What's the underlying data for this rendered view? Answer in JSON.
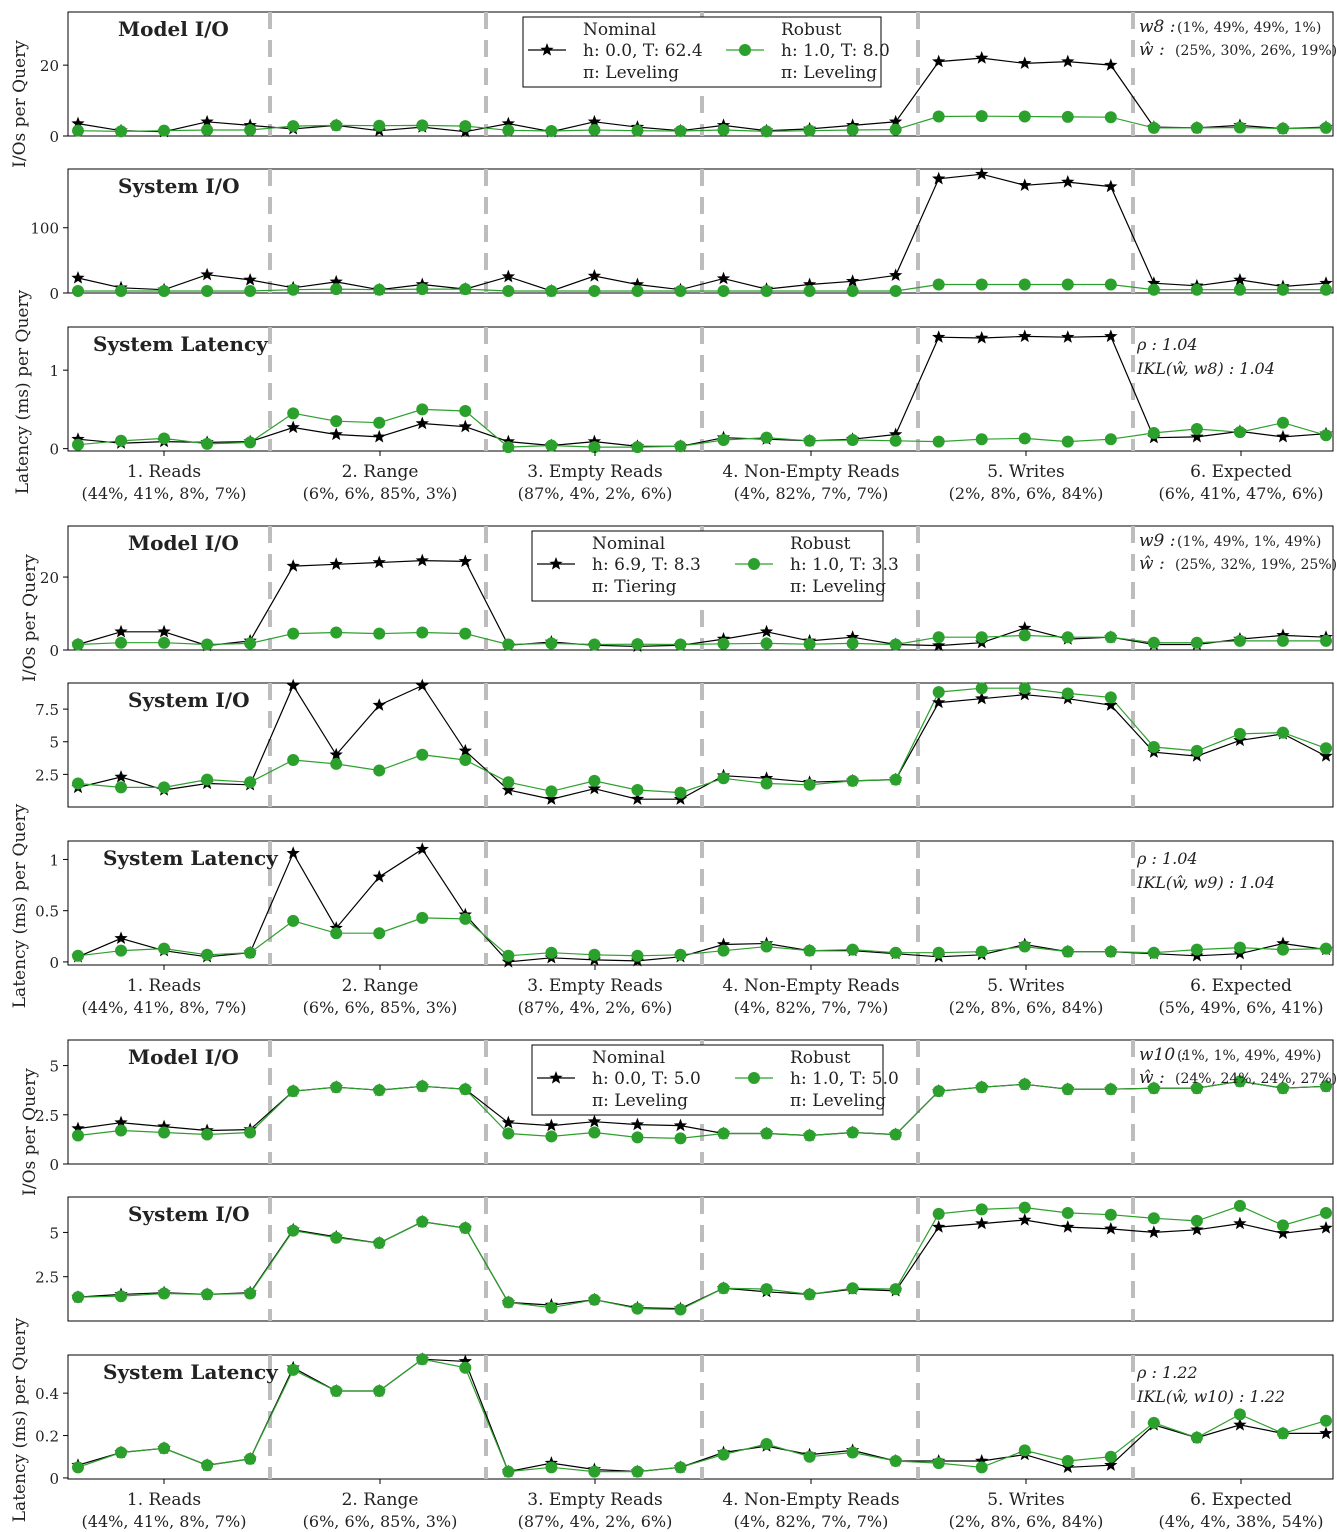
{
  "chart_data": [
    {
      "type": "line",
      "workload_categories": [
        {
          "name": "1. Reads",
          "mix": "(44%, 41%, 8%, 7%)"
        },
        {
          "name": "2. Range",
          "mix": "(6%, 6%, 85%, 3%)"
        },
        {
          "name": "3. Empty Reads",
          "mix": "(87%, 4%, 2%, 6%)"
        },
        {
          "name": "4. Non-Empty Reads",
          "mix": "(4%, 82%, 7%, 7%)"
        },
        {
          "name": "5. Writes",
          "mix": "(2%, 8%, 6%, 84%)"
        },
        {
          "name": "6. Expected",
          "mix": "(6%, 41%, 47%, 6%)"
        }
      ],
      "legend": {
        "nominal": {
          "title": "Nominal",
          "line1": "h: 0.0, T: 62.4",
          "line2": "π: Leveling"
        },
        "robust": {
          "title": "Robust",
          "line1": "h: 1.0, T: 8.0",
          "line2": "π: Leveling"
        }
      },
      "weights": {
        "w_label": "w8 :",
        "w_value": "(1%, 49%, 49%, 1%)",
        "what_label": "ŵ :",
        "what_value": "(25%, 30%, 26%, 19%)"
      },
      "metrics": {
        "rho": "ρ : 1.04",
        "ikl": "IKL(ŵ, w8) : 1.04"
      },
      "panels": [
        {
          "title": "Model I/O",
          "ylabel": "I/Os per Query",
          "ylim": [
            0,
            35
          ],
          "yticks": [
            0,
            20
          ],
          "nominal": [
            3.5,
            1.5,
            1.2,
            4,
            3,
            2,
            3,
            1.5,
            2.5,
            1.2,
            3.5,
            1.2,
            4,
            2.5,
            1.5,
            3,
            1.5,
            2,
            3,
            4,
            21,
            22,
            20.5,
            21,
            20,
            2.5,
            2.3,
            3,
            2.1,
            2.5
          ],
          "robust": [
            1.5,
            1.3,
            1.5,
            1.7,
            1.7,
            2.8,
            3,
            2.9,
            3,
            2.8,
            1.6,
            1.4,
            1.7,
            1.5,
            1.4,
            1.7,
            1.3,
            1.5,
            1.7,
            1.8,
            5.5,
            5.6,
            5.5,
            5.4,
            5.3,
            2.3,
            2.3,
            2.4,
            2.1,
            2.3
          ]
        },
        {
          "title": "System I/O",
          "ylabel": "",
          "ylim": [
            0,
            190
          ],
          "yticks": [
            0,
            100
          ],
          "nominal": [
            23,
            8,
            5,
            28,
            20,
            8,
            17,
            5,
            13,
            6,
            25,
            3,
            26,
            13,
            5,
            22,
            6,
            13,
            18,
            27,
            175,
            182,
            165,
            170,
            163,
            15,
            11,
            20,
            10,
            15
          ],
          "robust": [
            3,
            3,
            3,
            3,
            3,
            5,
            6,
            5,
            6,
            6,
            3,
            3,
            3,
            3,
            3,
            3,
            3,
            3,
            3,
            3,
            13,
            13,
            13,
            13,
            13,
            5,
            5,
            5,
            5,
            5
          ]
        },
        {
          "title": "System Latency",
          "ylabel": "Latency (ms) per Query",
          "ylim": [
            -0.03,
            1.55
          ],
          "yticks": [
            0,
            1
          ],
          "nominal": [
            0.12,
            0.07,
            0.09,
            0.08,
            0.09,
            0.27,
            0.18,
            0.15,
            0.32,
            0.28,
            0.09,
            0.04,
            0.09,
            0.03,
            0.03,
            0.14,
            0.12,
            0.1,
            0.12,
            0.18,
            1.42,
            1.41,
            1.43,
            1.42,
            1.43,
            0.14,
            0.15,
            0.22,
            0.15,
            0.19
          ],
          "robust": [
            0.05,
            0.1,
            0.13,
            0.06,
            0.08,
            0.45,
            0.35,
            0.33,
            0.5,
            0.48,
            0.02,
            0.04,
            0.02,
            0.02,
            0.03,
            0.11,
            0.14,
            0.1,
            0.11,
            0.1,
            0.09,
            0.12,
            0.13,
            0.09,
            0.12,
            0.2,
            0.25,
            0.21,
            0.33,
            0.17
          ]
        }
      ]
    },
    {
      "type": "line",
      "workload_categories": [
        {
          "name": "1. Reads",
          "mix": "(44%, 41%, 8%, 7%)"
        },
        {
          "name": "2. Range",
          "mix": "(6%, 6%, 85%, 3%)"
        },
        {
          "name": "3. Empty Reads",
          "mix": "(87%, 4%, 2%, 6%)"
        },
        {
          "name": "4. Non-Empty Reads",
          "mix": "(4%, 82%, 7%, 7%)"
        },
        {
          "name": "5. Writes",
          "mix": "(2%, 8%, 6%, 84%)"
        },
        {
          "name": "6. Expected",
          "mix": "(5%, 49%, 6%, 41%)"
        }
      ],
      "legend": {
        "nominal": {
          "title": "Nominal",
          "line1": "h: 6.9, T: 8.3",
          "line2": "π: Tiering"
        },
        "robust": {
          "title": "Robust",
          "line1": "h: 1.0, T: 3.3",
          "line2": "π: Leveling"
        }
      },
      "weights": {
        "w_label": "w9 :",
        "w_value": "(1%, 49%, 1%, 49%)",
        "what_label": "ŵ :",
        "what_value": "(25%, 32%, 19%, 25%)"
      },
      "metrics": {
        "rho": "ρ : 1.04",
        "ikl": "IKL(ŵ, w9) : 1.04"
      },
      "panels": [
        {
          "title": "Model I/O",
          "ylabel": "I/Os per Query",
          "ylim": [
            0,
            34
          ],
          "yticks": [
            0,
            20
          ],
          "nominal": [
            1.5,
            5,
            5,
            1.2,
            2.5,
            23,
            23.5,
            24,
            24.5,
            24.3,
            1.3,
            2.2,
            1.3,
            1,
            1.3,
            3,
            5,
            2.5,
            3.5,
            1.5,
            1.2,
            2,
            6,
            3,
            3.5,
            1.5,
            1.5,
            3,
            4,
            3.5
          ],
          "robust": [
            1.5,
            2,
            2,
            1.5,
            1.8,
            4.5,
            4.8,
            4.5,
            4.8,
            4.5,
            1.5,
            1.8,
            1.5,
            1.6,
            1.5,
            1.7,
            1.8,
            1.6,
            1.8,
            1.5,
            3.5,
            3.5,
            4,
            3.5,
            3.5,
            2,
            2,
            2.5,
            2.5,
            2.5
          ]
        },
        {
          "title": "System I/O",
          "ylabel": "",
          "ylim": [
            0,
            9.5
          ],
          "yticks": [
            2.5,
            5.0,
            7.5
          ],
          "nominal": [
            1.5,
            2.3,
            1.3,
            1.8,
            1.7,
            9.3,
            4,
            7.8,
            9.3,
            4.3,
            1.3,
            0.6,
            1.4,
            0.6,
            0.6,
            2.4,
            2.2,
            1.9,
            2,
            2.1,
            8,
            8.3,
            8.6,
            8.3,
            7.8,
            4.2,
            3.9,
            5.1,
            5.6,
            3.9
          ],
          "robust": [
            1.8,
            1.5,
            1.5,
            2.1,
            1.9,
            3.6,
            3.3,
            2.8,
            4,
            3.6,
            1.9,
            1.2,
            2,
            1.3,
            1.1,
            2.2,
            1.8,
            1.7,
            2,
            2.1,
            8.8,
            9.1,
            9.1,
            8.7,
            8.4,
            4.6,
            4.3,
            5.6,
            5.7,
            4.5
          ]
        },
        {
          "title": "System Latency",
          "ylabel": "Latency (ms) per Query",
          "ylim": [
            -0.03,
            1.18
          ],
          "yticks": [
            0.0,
            0.5,
            1.0
          ],
          "nominal": [
            0.05,
            0.23,
            0.11,
            0.05,
            0.09,
            1.06,
            0.33,
            0.83,
            1.1,
            0.46,
            0.0,
            0.04,
            0.02,
            0.01,
            0.05,
            0.17,
            0.18,
            0.11,
            0.11,
            0.08,
            0.05,
            0.07,
            0.17,
            0.1,
            0.1,
            0.08,
            0.06,
            0.08,
            0.18,
            0.12
          ],
          "robust": [
            0.06,
            0.11,
            0.13,
            0.07,
            0.09,
            0.4,
            0.28,
            0.28,
            0.43,
            0.42,
            0.06,
            0.09,
            0.07,
            0.06,
            0.07,
            0.11,
            0.15,
            0.11,
            0.12,
            0.09,
            0.09,
            0.1,
            0.15,
            0.1,
            0.1,
            0.09,
            0.12,
            0.14,
            0.12,
            0.13
          ]
        }
      ]
    },
    {
      "type": "line",
      "workload_categories": [
        {
          "name": "1. Reads",
          "mix": "(44%, 41%, 8%, 7%)"
        },
        {
          "name": "2. Range",
          "mix": "(6%, 6%, 85%, 3%)"
        },
        {
          "name": "3. Empty Reads",
          "mix": "(87%, 4%, 2%, 6%)"
        },
        {
          "name": "4. Non-Empty Reads",
          "mix": "(4%, 82%, 7%, 7%)"
        },
        {
          "name": "5. Writes",
          "mix": "(2%, 8%, 6%, 84%)"
        },
        {
          "name": "6. Expected",
          "mix": "(4%, 4%, 38%, 54%)"
        }
      ],
      "legend": {
        "nominal": {
          "title": "Nominal",
          "line1": "h: 0.0, T: 5.0",
          "line2": "π: Leveling"
        },
        "robust": {
          "title": "Robust",
          "line1": "h: 1.0, T: 5.0",
          "line2": "π: Leveling"
        }
      },
      "weights": {
        "w_label": "w10 :",
        "w_value": "(1%, 1%, 49%, 49%)",
        "what_label": "ŵ :",
        "what_value": "(24%, 24%, 24%, 27%)"
      },
      "metrics": {
        "rho": "ρ : 1.22",
        "ikl": "IKL(ŵ, w10) : 1.22"
      },
      "panels": [
        {
          "title": "Model I/O",
          "ylabel": "I/Os per Query",
          "ylim": [
            0,
            6.3
          ],
          "yticks": [
            0.0,
            2.5,
            5.0
          ],
          "nominal": [
            1.8,
            2.1,
            1.9,
            1.7,
            1.75,
            3.7,
            3.9,
            3.75,
            3.95,
            3.8,
            2.1,
            1.95,
            2.15,
            2,
            1.95,
            1.55,
            1.55,
            1.45,
            1.6,
            1.5,
            3.7,
            3.9,
            4.05,
            3.8,
            3.8,
            3.85,
            3.85,
            4.2,
            3.85,
            3.95
          ],
          "robust": [
            1.45,
            1.7,
            1.6,
            1.5,
            1.6,
            3.7,
            3.9,
            3.75,
            3.95,
            3.8,
            1.55,
            1.4,
            1.6,
            1.35,
            1.3,
            1.55,
            1.55,
            1.45,
            1.6,
            1.5,
            3.7,
            3.9,
            4.05,
            3.8,
            3.8,
            3.85,
            3.85,
            4.2,
            3.85,
            3.95
          ]
        },
        {
          "title": "System I/O",
          "ylabel": "",
          "ylim": [
            0,
            7.0
          ],
          "yticks": [
            2.5,
            5.0
          ],
          "nominal": [
            1.35,
            1.5,
            1.6,
            1.5,
            1.6,
            5.15,
            4.75,
            4.4,
            5.6,
            5.25,
            1.05,
            0.9,
            1.2,
            0.75,
            0.7,
            1.85,
            1.65,
            1.5,
            1.8,
            1.7,
            5.3,
            5.5,
            5.7,
            5.3,
            5.2,
            5,
            5.15,
            5.5,
            4.95,
            5.25
          ],
          "robust": [
            1.35,
            1.4,
            1.55,
            1.5,
            1.55,
            5.1,
            4.7,
            4.4,
            5.6,
            5.25,
            1.05,
            0.75,
            1.2,
            0.7,
            0.65,
            1.85,
            1.8,
            1.5,
            1.85,
            1.8,
            6.05,
            6.3,
            6.4,
            6.1,
            6,
            5.8,
            5.65,
            6.5,
            5.4,
            6.1
          ]
        },
        {
          "title": "System Latency",
          "ylabel": "Latency (ms) per Query",
          "ylim": [
            -0.005,
            0.58
          ],
          "yticks": [
            0.0,
            0.2,
            0.4
          ],
          "nominal": [
            0.06,
            0.12,
            0.14,
            0.06,
            0.09,
            0.52,
            0.41,
            0.41,
            0.56,
            0.55,
            0.03,
            0.07,
            0.04,
            0.03,
            0.05,
            0.12,
            0.15,
            0.11,
            0.13,
            0.08,
            0.08,
            0.08,
            0.11,
            0.05,
            0.06,
            0.25,
            0.19,
            0.25,
            0.21,
            0.21
          ],
          "robust": [
            0.05,
            0.12,
            0.14,
            0.06,
            0.09,
            0.51,
            0.41,
            0.41,
            0.56,
            0.52,
            0.03,
            0.05,
            0.03,
            0.03,
            0.05,
            0.11,
            0.16,
            0.1,
            0.12,
            0.08,
            0.07,
            0.05,
            0.13,
            0.08,
            0.1,
            0.26,
            0.19,
            0.3,
            0.21,
            0.27
          ]
        }
      ]
    }
  ],
  "colors": {
    "nominal": "#000000",
    "robust": "#2ca02c",
    "divider": "#bdbdbd",
    "frame": "#000000"
  }
}
